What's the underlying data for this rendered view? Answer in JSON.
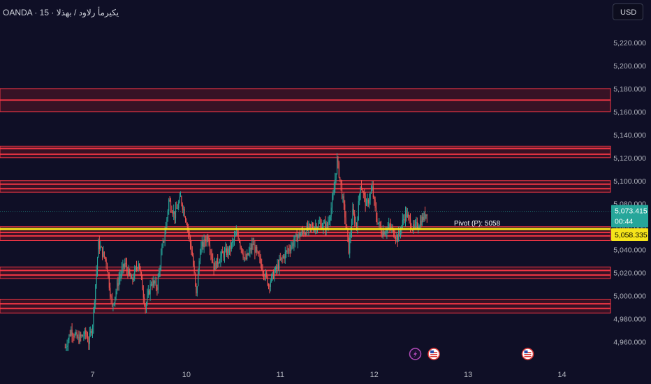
{
  "header": {
    "title": "OANDA · 15 · يكيرمأ رلاود / بهذلا",
    "currency_button": "USD"
  },
  "colors": {
    "background": "#0f0f26",
    "zone_fill": "#5a1525",
    "zone_line": "#f23645",
    "pivot_line": "#f5e31a",
    "bull_candle": "#26a69a",
    "bear_candle": "#ef5350",
    "price_label": "#26a69a",
    "pivot_label": "#f5e31a",
    "axis_text": "#b2b5be"
  },
  "chart_data": {
    "type": "candlestick",
    "title": "OANDA · 15 · يكيرمأ رلاود / بهذلا",
    "ylim": [
      4950,
      5235
    ],
    "y_ticks": [
      4960,
      4980,
      5000,
      5020,
      5040,
      5060,
      5080,
      5100,
      5120,
      5140,
      5160,
      5180,
      5200,
      5220
    ],
    "y_tick_labels": [
      "4,960.000",
      "4,980.000",
      "5,000.000",
      "5,020.000",
      "5,040.000",
      "5,060.000",
      "5,080.000",
      "5,100.000",
      "5,120.000",
      "5,140.000",
      "5,160.000",
      "5,180.000",
      "5,200.000",
      "5,220.000"
    ],
    "x_ticks": [
      {
        "label": "7",
        "index": 0
      },
      {
        "label": "10",
        "index": 96
      },
      {
        "label": "11",
        "index": 192
      },
      {
        "label": "12",
        "index": 288
      },
      {
        "label": "13",
        "index": 384
      },
      {
        "label": "14",
        "index": 480
      }
    ],
    "x_index_range": [
      -28,
      490
    ],
    "zones": [
      {
        "low": 5160,
        "high": 5180,
        "lines": [
          5170
        ]
      },
      {
        "low": 5120,
        "high": 5130,
        "lines": [
          5123,
          5128
        ]
      },
      {
        "low": 5090,
        "high": 5100,
        "lines": [
          5093,
          5097
        ]
      },
      {
        "low": 5048,
        "high": 5060,
        "lines": [
          5052,
          5055
        ]
      },
      {
        "low": 5015,
        "high": 5025,
        "lines": [
          5018,
          5022
        ]
      },
      {
        "low": 4985,
        "high": 4997,
        "lines": [
          4989,
          4993
        ]
      }
    ],
    "pivot": {
      "value": 5058,
      "label": "Pivot (P): 5058"
    },
    "last_price": {
      "value": 5073.415,
      "label": "5,073.415",
      "countdown": "00:44"
    },
    "pivot_price_label": "5,058.335",
    "price_path": [
      {
        "i": -28,
        "p": 4955
      },
      {
        "i": -22,
        "p": 4970
      },
      {
        "i": -15,
        "p": 4962
      },
      {
        "i": -7,
        "p": 4967
      },
      {
        "i": -4,
        "p": 4960
      },
      {
        "i": 0,
        "p": 4975
      },
      {
        "i": 6,
        "p": 5045
      },
      {
        "i": 14,
        "p": 5030
      },
      {
        "i": 20,
        "p": 4990
      },
      {
        "i": 27,
        "p": 5015
      },
      {
        "i": 33,
        "p": 5028
      },
      {
        "i": 40,
        "p": 5012
      },
      {
        "i": 47,
        "p": 5030
      },
      {
        "i": 54,
        "p": 4990
      },
      {
        "i": 60,
        "p": 5012
      },
      {
        "i": 66,
        "p": 5008
      },
      {
        "i": 71,
        "p": 5040
      },
      {
        "i": 75,
        "p": 5060
      },
      {
        "i": 78,
        "p": 5083
      },
      {
        "i": 84,
        "p": 5070
      },
      {
        "i": 90,
        "p": 5085
      },
      {
        "i": 96,
        "p": 5065
      },
      {
        "i": 102,
        "p": 5035
      },
      {
        "i": 106,
        "p": 5000
      },
      {
        "i": 110,
        "p": 5040
      },
      {
        "i": 118,
        "p": 5052
      },
      {
        "i": 124,
        "p": 5025
      },
      {
        "i": 132,
        "p": 5035
      },
      {
        "i": 140,
        "p": 5040
      },
      {
        "i": 148,
        "p": 5055
      },
      {
        "i": 156,
        "p": 5030
      },
      {
        "i": 164,
        "p": 5045
      },
      {
        "i": 172,
        "p": 5028
      },
      {
        "i": 180,
        "p": 5010
      },
      {
        "i": 186,
        "p": 5020
      },
      {
        "i": 192,
        "p": 5030
      },
      {
        "i": 200,
        "p": 5040
      },
      {
        "i": 210,
        "p": 5052
      },
      {
        "i": 220,
        "p": 5058
      },
      {
        "i": 232,
        "p": 5062
      },
      {
        "i": 240,
        "p": 5060
      },
      {
        "i": 246,
        "p": 5085
      },
      {
        "i": 250,
        "p": 5118
      },
      {
        "i": 254,
        "p": 5095
      },
      {
        "i": 258,
        "p": 5070
      },
      {
        "i": 262,
        "p": 5040
      },
      {
        "i": 266,
        "p": 5072
      },
      {
        "i": 270,
        "p": 5060
      },
      {
        "i": 274,
        "p": 5098
      },
      {
        "i": 280,
        "p": 5078
      },
      {
        "i": 286,
        "p": 5093
      },
      {
        "i": 290,
        "p": 5068
      },
      {
        "i": 296,
        "p": 5055
      },
      {
        "i": 304,
        "p": 5060
      },
      {
        "i": 312,
        "p": 5050
      },
      {
        "i": 320,
        "p": 5072
      },
      {
        "i": 328,
        "p": 5058
      },
      {
        "i": 336,
        "p": 5065
      },
      {
        "i": 342,
        "p": 5073
      }
    ],
    "events": [
      {
        "index": 330,
        "icon": "lightning-icon"
      },
      {
        "index": 349,
        "icon": "us-flag-icon"
      },
      {
        "index": 445,
        "icon": "us-flag-icon"
      }
    ]
  }
}
